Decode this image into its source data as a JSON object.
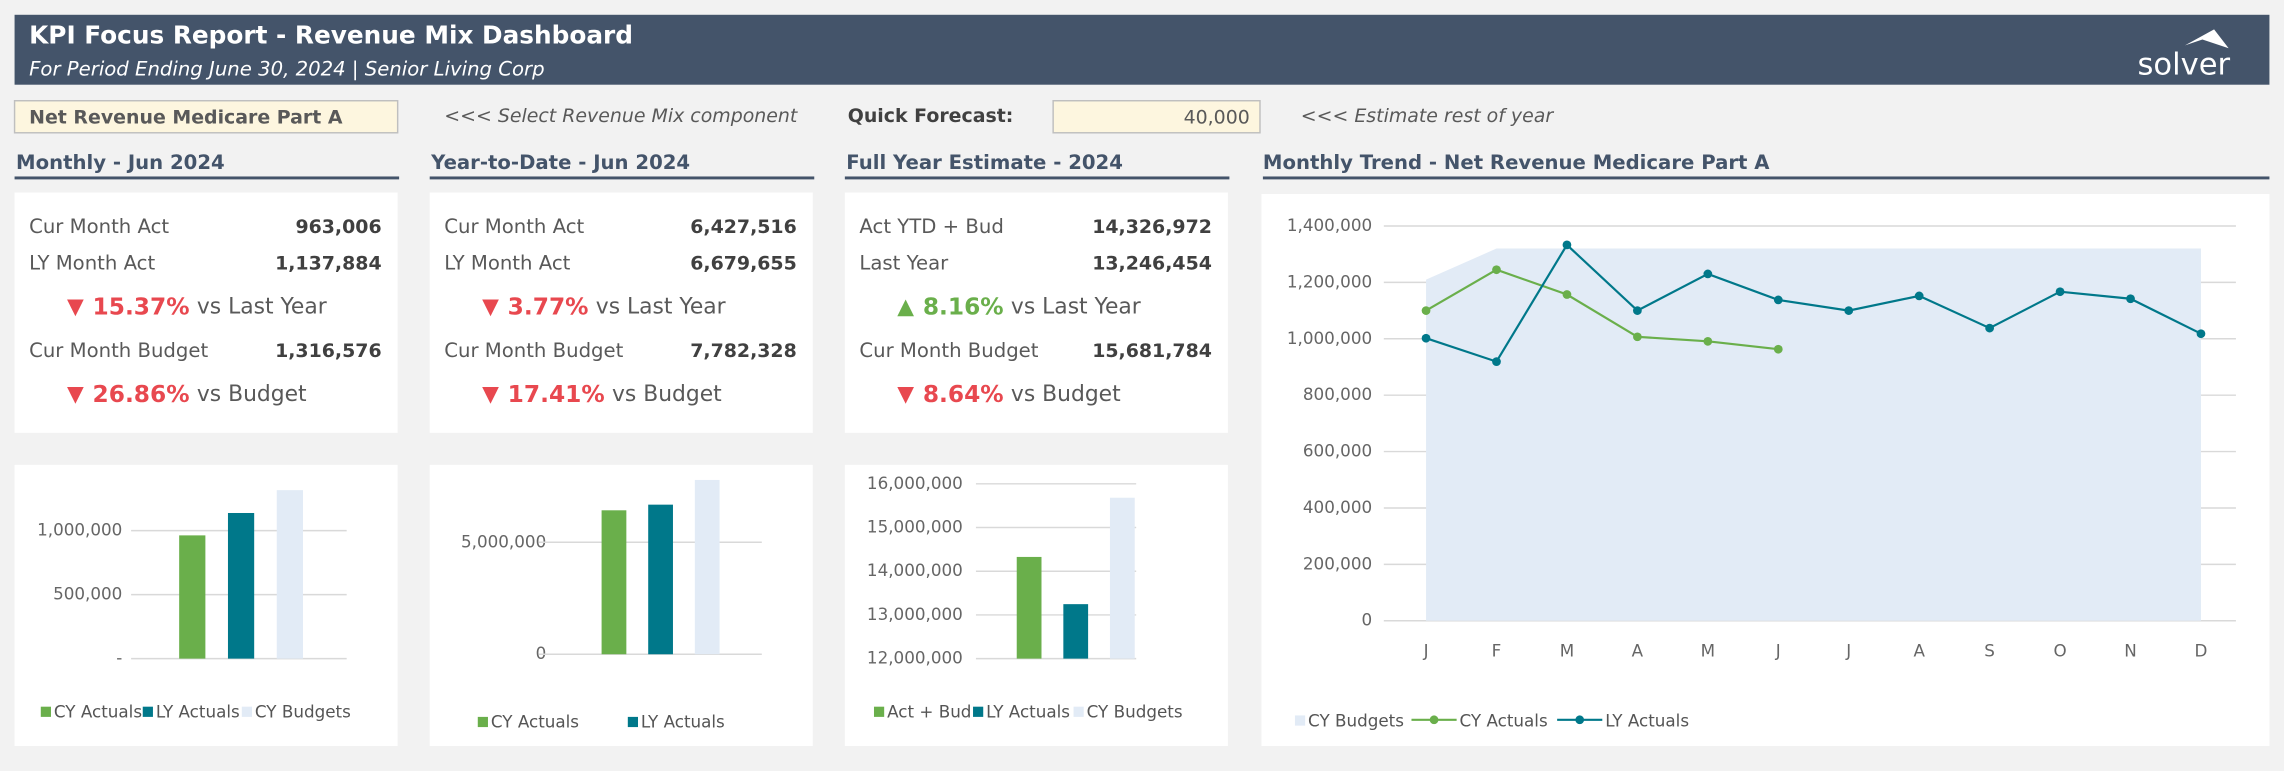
{
  "header": {
    "title": "KPI Focus Report - Revenue Mix Dashboard",
    "subtitle": "For Period Ending June 30, 2024 | Senior Living Corp",
    "logo": "solver"
  },
  "controls": {
    "selector": "Net Revenue Medicare Part A",
    "selector_hint": "<<< Select Revenue Mix component",
    "forecast_label": "Quick Forecast:",
    "forecast_value": "40,000",
    "forecast_hint": "<<< Estimate rest of year"
  },
  "panels": [
    {
      "title": "Monthly - Jun 2024",
      "lines": [
        {
          "label": "Cur Month Act",
          "value": "963,006"
        },
        {
          "label": "LY Month Act",
          "value": "1,137,884"
        },
        {
          "arrow": "▼",
          "change": "15.37%",
          "label": "vs Last Year",
          "color": "#e8484f"
        },
        {
          "label": "Cur Month Budget",
          "value": "1,316,576"
        },
        {
          "arrow": "▼",
          "change": "26.86%",
          "label": "vs Budget",
          "color": "#e8484f"
        }
      ]
    },
    {
      "title": "Year-to-Date - Jun 2024",
      "lines": [
        {
          "label": "Cur Month Act",
          "value": "6,427,516"
        },
        {
          "label": "LY Month Act",
          "value": "6,679,655"
        },
        {
          "arrow": "▼",
          "change": "3.77%",
          "label": "vs Last Year",
          "color": "#e8484f"
        },
        {
          "label": "Cur Month Budget",
          "value": "7,782,328"
        },
        {
          "arrow": "▼",
          "change": "17.41%",
          "label": "vs Budget",
          "color": "#e8484f"
        }
      ]
    },
    {
      "title": "Full Year Estimate - 2024",
      "lines": [
        {
          "label": "Act YTD + Bud",
          "value": "14,326,972"
        },
        {
          "label": "Last Year",
          "value": "13,246,454"
        },
        {
          "arrow": "▲",
          "change": "8.16%",
          "label": "vs Last Year",
          "color": "#6aaf4b"
        },
        {
          "label": "Cur Month Budget",
          "value": "15,681,784"
        },
        {
          "arrow": "▼",
          "change": "8.64%",
          "label": "vs Budget",
          "color": "#e8484f"
        }
      ]
    }
  ],
  "chart_data": [
    {
      "type": "bar",
      "grid": true,
      "ylim": [
        0,
        1400000
      ],
      "yticks": [
        {
          "value": 0,
          "label": "-"
        },
        {
          "value": 500000,
          "label": "500,000"
        },
        {
          "value": 1000000,
          "label": "1,000,000"
        }
      ],
      "series": [
        {
          "name": "CY Actuals",
          "color": "#6aaf4b",
          "values": [
            963006
          ]
        },
        {
          "name": "LY Actuals",
          "color": "#00788a",
          "values": [
            1137884
          ]
        },
        {
          "name": "CY Budgets",
          "color": "#e2ebf6",
          "values": [
            1316576
          ]
        }
      ]
    },
    {
      "type": "bar",
      "grid": true,
      "ylim": [
        0,
        8000000
      ],
      "yticks": [
        0,
        {
          "value": 5000000,
          "label": "5,000,000"
        }
      ],
      "series": [
        {
          "name": "CY Actuals",
          "color": "#6aaf4b",
          "values": [
            6427516
          ]
        },
        {
          "name": "LY Actuals",
          "color": "#00788a",
          "values": [
            6679655
          ]
        },
        {
          "color": "#e2ebf6",
          "values": [
            7782328
          ]
        }
      ]
    },
    {
      "type": "bar",
      "grid": true,
      "ylim": [
        12000000,
        16000000
      ],
      "yticks": [
        {
          "value": 12000000,
          "label": "12,000,000"
        },
        {
          "value": 13000000,
          "label": "13,000,000"
        },
        {
          "value": 14000000,
          "label": "14,000,000"
        },
        {
          "value": 15000000,
          "label": "15,000,000"
        },
        {
          "value": 16000000,
          "label": "16,000,000"
        }
      ],
      "series": [
        {
          "name": "Act + Bud",
          "color": "#6aaf4b",
          "values": [
            14326972
          ]
        },
        {
          "name": "LY Actuals",
          "color": "#00788a",
          "values": [
            13246454
          ]
        },
        {
          "name": "CY Budgets",
          "color": "#e2ebf6",
          "values": [
            15681784
          ]
        }
      ]
    },
    {
      "type": "line",
      "title": "Monthly Trend - Net Revenue Medicare Part A",
      "grid": true,
      "ylim": [
        0,
        1400000
      ],
      "yticks": [
        0,
        {
          "value": 200000,
          "label": "200,000"
        },
        {
          "value": 400000,
          "label": "400,000"
        },
        {
          "value": 600000,
          "label": "600,000"
        },
        {
          "value": 800000,
          "label": "800,000"
        },
        {
          "value": 1000000,
          "label": "1,000,000"
        },
        {
          "value": 1200000,
          "label": "1,200,000"
        },
        {
          "value": 1400000,
          "label": "1,400,000"
        }
      ],
      "categories": [
        "J",
        "F",
        "M",
        "A",
        "M",
        "J",
        "J",
        "A",
        "S",
        "O",
        "N",
        "D"
      ],
      "series": [
        {
          "name": "CY Budgets",
          "type": "area",
          "color": "#e2ebf6",
          "values": [
            1210000,
            1320000,
            1320000,
            1320000,
            1320000,
            1320000,
            1320000,
            1320000,
            1320000,
            1320000,
            1320000,
            1320000
          ]
        },
        {
          "name": "CY Actuals",
          "type": "line",
          "color": "#6aaf4b",
          "values": [
            1100000,
            1245000,
            1157000,
            1007000,
            991000,
            963006,
            null,
            null,
            null,
            null,
            null,
            null
          ]
        },
        {
          "name": "LY Actuals",
          "type": "line",
          "color": "#00788a",
          "values": [
            1002000,
            919000,
            1333000,
            1100000,
            1230000,
            1137884,
            1100000,
            1152000,
            1038000,
            1167000,
            1142000,
            1018000
          ]
        }
      ]
    }
  ]
}
